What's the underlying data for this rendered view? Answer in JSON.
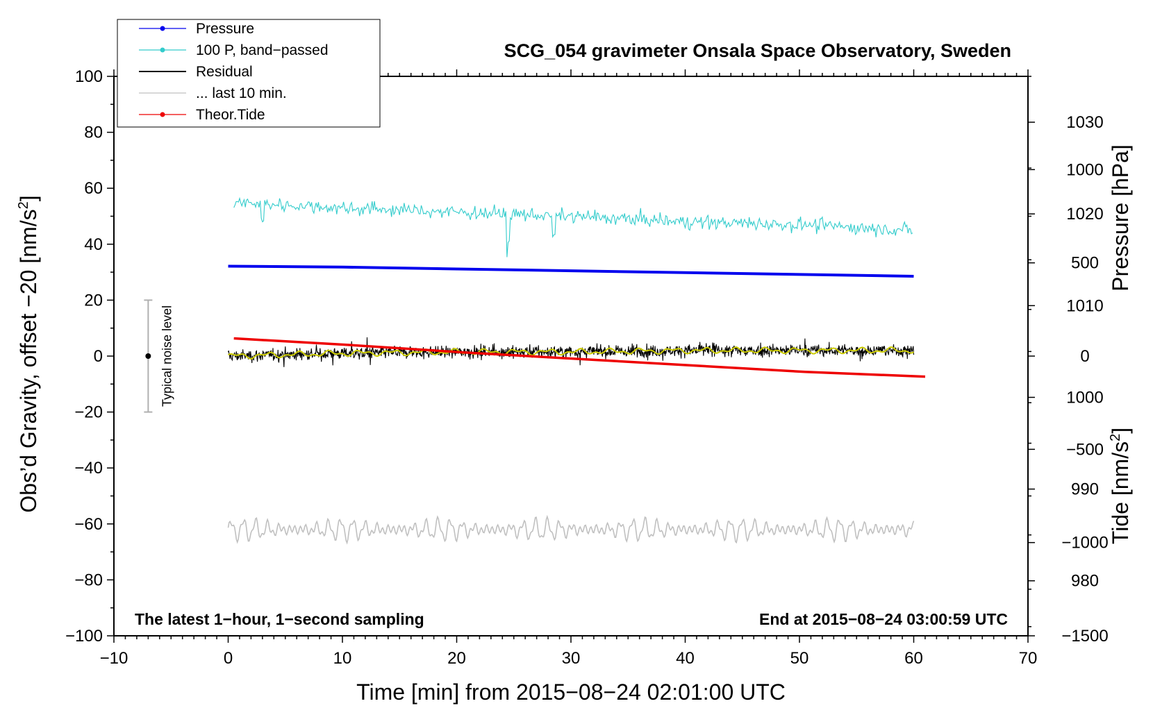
{
  "chart_data": {
    "type": "line",
    "title": "SCG_054 gravimeter Onsala Space Observatory, Sweden",
    "xlabel": "Time [min] from 2015−08−24 02:01:00 UTC",
    "ylabel_left": "Obs’d Gravity, offset −20 [nm/s",
    "ylabel_left_sup": "2",
    "ylabel_left_end": "]",
    "ylabel_pressure": "Pressure [hPa]",
    "ylabel_tide": "Tide [nm/s",
    "ylabel_tide_sup": "2",
    "ylabel_tide_end": "]",
    "xlim": [
      -10,
      70
    ],
    "ylim_left": [
      -100,
      100
    ],
    "pressure_ylim": [
      974,
      1035
    ],
    "tide_ylim": [
      -1500,
      1500
    ],
    "x_ticks": [
      {
        "v": -10,
        "t": "−10"
      },
      {
        "v": 0,
        "t": "0"
      },
      {
        "v": 10,
        "t": "10"
      },
      {
        "v": 20,
        "t": "20"
      },
      {
        "v": 30,
        "t": "30"
      },
      {
        "v": 40,
        "t": "40"
      },
      {
        "v": 50,
        "t": "50"
      },
      {
        "v": 60,
        "t": "60"
      },
      {
        "v": 70,
        "t": "70"
      }
    ],
    "y_ticks_left": [
      {
        "v": 100,
        "t": "100"
      },
      {
        "v": 80,
        "t": "80"
      },
      {
        "v": 60,
        "t": "60"
      },
      {
        "v": 40,
        "t": "40"
      },
      {
        "v": 20,
        "t": "20"
      },
      {
        "v": 0,
        "t": "0"
      },
      {
        "v": -20,
        "t": "−20"
      },
      {
        "v": -40,
        "t": "−40"
      },
      {
        "v": -60,
        "t": "−60"
      },
      {
        "v": -80,
        "t": "−80"
      },
      {
        "v": -100,
        "t": "−100"
      }
    ],
    "pressure_ticks": [
      {
        "v": 1030,
        "t": "1030"
      },
      {
        "v": 1020,
        "t": "1020"
      },
      {
        "v": 1010,
        "t": "1010"
      },
      {
        "v": 1000,
        "t": "1000"
      },
      {
        "v": 990,
        "t": "990"
      },
      {
        "v": 980,
        "t": "980"
      }
    ],
    "tide_ticks": [
      {
        "v": 1000,
        "t": "1000"
      },
      {
        "v": 500,
        "t": "500"
      },
      {
        "v": 0,
        "t": "0"
      },
      {
        "v": -500,
        "t": "−500"
      },
      {
        "v": -1000,
        "t": "−1000"
      },
      {
        "v": -1500,
        "t": "−1500"
      }
    ],
    "series": [
      {
        "name": "Pressure",
        "color": "#0000ee",
        "x": [
          0,
          10,
          20,
          30,
          40,
          50,
          60
        ],
        "values": [
          1014.3,
          1014.2,
          1014.0,
          1013.8,
          1013.6,
          1013.4,
          1013.2
        ]
      },
      {
        "name": "100 P, band−passed",
        "color": "#33cccc",
        "x": [
          0,
          10,
          20,
          30,
          40,
          50,
          60
        ],
        "values": [
          55.0,
          53.0,
          51.5,
          50.0,
          48.0,
          47.0,
          45.0
        ]
      },
      {
        "name": "Residual",
        "color": "#000000",
        "x": [
          0,
          10,
          20,
          30,
          40,
          50,
          60
        ],
        "values": [
          0.0,
          1.0,
          1.5,
          1.5,
          2.0,
          2.0,
          2.0
        ]
      },
      {
        "name": "... last 10 min.",
        "color": "#c0c0c0",
        "x": [
          0,
          10,
          20,
          30,
          40,
          50,
          60
        ],
        "values": [
          -62.0,
          -62.0,
          -62.0,
          -62.0,
          -62.0,
          -62.0,
          -62.0
        ]
      },
      {
        "name": "Theor.Tide",
        "color": "#ee0000",
        "x": [
          0,
          10,
          20,
          30,
          40,
          50,
          60.5
        ],
        "values": [
          95,
          60,
          20,
          -15,
          -50,
          -85,
          -110
        ]
      }
    ],
    "residual_smoothed_color": "#cccc00",
    "annotations": {
      "left": "The latest 1−hour, 1−second sampling",
      "right": "End at 2015−08−24 03:00:59 UTC",
      "noise": "Typical noise level"
    },
    "noise_bar": {
      "x": -7,
      "center": 0,
      "low": -20,
      "high": 20
    },
    "legend_position": "top-left"
  }
}
